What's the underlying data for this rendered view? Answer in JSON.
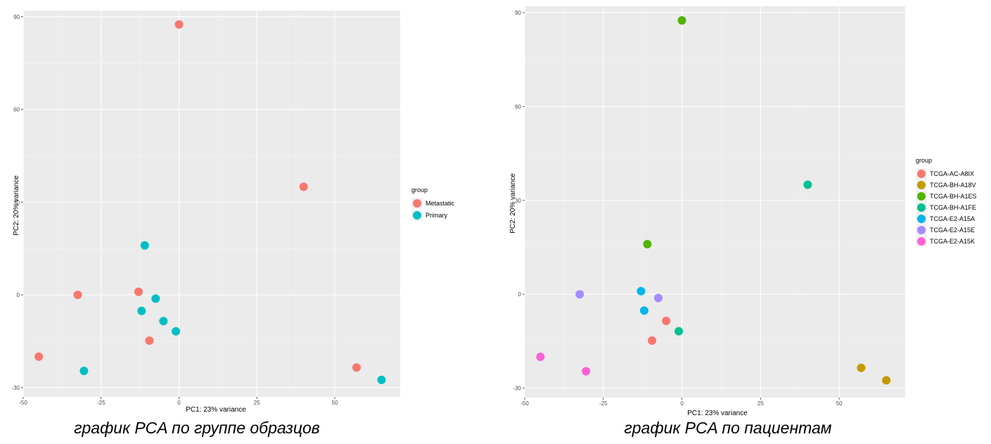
{
  "captions": {
    "left": "график PCA по группе образцов",
    "right": "график PCA по пациентам"
  },
  "chart_data": [
    {
      "type": "scatter",
      "xlabel": "PC1: 23% variance",
      "ylabel": "PC2: 20% variance",
      "xlim": [
        -50,
        71
      ],
      "ylim": [
        -33,
        92
      ],
      "xticks": [
        -50,
        -25,
        0,
        25,
        50
      ],
      "yticks": [
        -30,
        0,
        30,
        60,
        90
      ],
      "grid": true,
      "legend": {
        "title": "group",
        "position": "right"
      },
      "series": [
        {
          "name": "Metastatic",
          "color": "#F8766D",
          "points": [
            [
              0,
              87.5
            ],
            [
              40,
              35
            ],
            [
              -13,
              1
            ],
            [
              -32.5,
              0
            ],
            [
              -9.5,
              -14.8
            ],
            [
              -45,
              -20
            ],
            [
              57,
              -23.5
            ]
          ]
        },
        {
          "name": "Primary",
          "color": "#00BFC4",
          "points": [
            [
              -11,
              16
            ],
            [
              -7.5,
              -1.2
            ],
            [
              -12,
              -5.2
            ],
            [
              -5,
              -8.5
            ],
            [
              -1,
              -11.8
            ],
            [
              -30.5,
              -24.6
            ],
            [
              65,
              -27.5
            ]
          ]
        }
      ]
    },
    {
      "type": "scatter",
      "xlabel": "PC1: 23% variance",
      "ylabel": "PC2: 20% variance",
      "xlim": [
        -50,
        71
      ],
      "ylim": [
        -33,
        92
      ],
      "xticks": [
        -50,
        -25,
        0,
        25,
        50
      ],
      "yticks": [
        -30,
        0,
        30,
        60,
        90
      ],
      "grid": true,
      "legend": {
        "title": "group",
        "position": "right"
      },
      "series": [
        {
          "name": "TCGA-AC-A8IX",
          "color": "#F8766D",
          "points": [
            [
              -5,
              -8.5
            ],
            [
              -9.5,
              -14.8
            ]
          ]
        },
        {
          "name": "TCGA-BH-A18V",
          "color": "#C49A00",
          "points": [
            [
              57,
              -23.5
            ],
            [
              65,
              -27.5
            ]
          ]
        },
        {
          "name": "TCGA-BH-A1ES",
          "color": "#53B400",
          "points": [
            [
              0,
              87.5
            ],
            [
              -11,
              16
            ]
          ]
        },
        {
          "name": "TCGA-BH-A1FE",
          "color": "#00C094",
          "points": [
            [
              40,
              35
            ],
            [
              -1,
              -11.8
            ]
          ]
        },
        {
          "name": "TCGA-E2-A15A",
          "color": "#00B6EB",
          "points": [
            [
              -13,
              1
            ],
            [
              -12,
              -5.2
            ]
          ]
        },
        {
          "name": "TCGA-E2-A15E",
          "color": "#A58AFF",
          "points": [
            [
              -32.5,
              0
            ],
            [
              -7.5,
              -1.2
            ]
          ]
        },
        {
          "name": "TCGA-E2-A15K",
          "color": "#FB61D7",
          "points": [
            [
              -45,
              -20
            ],
            [
              -30.5,
              -24.6
            ]
          ]
        }
      ]
    }
  ]
}
